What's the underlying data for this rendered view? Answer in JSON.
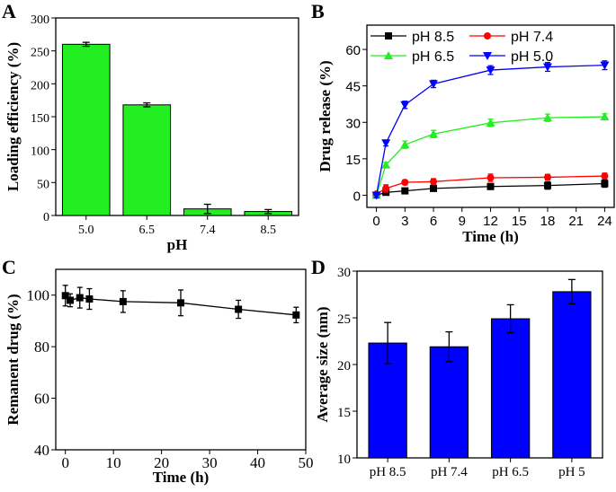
{
  "chart_data": [
    {
      "panel": "A",
      "type": "bar",
      "categories": [
        "5.0",
        "6.5",
        "7.4",
        "8.5"
      ],
      "values": [
        260,
        168,
        10,
        6
      ],
      "errors": [
        3,
        3,
        7,
        3
      ],
      "xlabel": "pH",
      "ylabel": "Loading efficiency (%)",
      "ylim": [
        0,
        300
      ],
      "yticks": [
        0,
        50,
        100,
        150,
        200,
        250,
        300
      ],
      "color": "#22ee22"
    },
    {
      "panel": "B",
      "type": "line",
      "x": [
        0,
        1,
        3,
        6,
        12,
        18,
        24
      ],
      "xlabel": "Time (h)",
      "ylabel": "Drug release (%)",
      "xlim": [
        -1,
        25
      ],
      "ylim": [
        -5,
        70
      ],
      "xticks": [
        0,
        3,
        6,
        9,
        12,
        15,
        18,
        21,
        24
      ],
      "yticks": [
        0,
        15,
        30,
        45,
        60
      ],
      "legend": "top",
      "series": [
        {
          "name": "pH 8.5",
          "color": "#000000",
          "marker": "square",
          "values": [
            0,
            1.2,
            1.8,
            2.8,
            3.6,
            4.0,
            4.8
          ],
          "errors": [
            0.8,
            0.8,
            1,
            1,
            1.2,
            1.5,
            1.5
          ]
        },
        {
          "name": "pH 7.4",
          "color": "#ff0000",
          "marker": "circle",
          "values": [
            0.5,
            2.8,
            5.3,
            5.6,
            7.2,
            7.4,
            7.9
          ],
          "errors": [
            0.8,
            1.5,
            1,
            1.2,
            1.5,
            1.2,
            1.2
          ]
        },
        {
          "name": "pH 6.5",
          "color": "#22ee22",
          "marker": "triangle-up",
          "values": [
            0,
            12.5,
            20.8,
            25.2,
            29.8,
            31.9,
            32.3
          ],
          "errors": [
            1,
            1,
            1.5,
            1.5,
            1.5,
            1.5,
            1.2
          ]
        },
        {
          "name": "pH 5.0",
          "color": "#0000ff",
          "marker": "triangle-down",
          "values": [
            0,
            21.5,
            37.2,
            45.8,
            51.5,
            52.8,
            53.5
          ],
          "errors": [
            1,
            1.2,
            1.5,
            1.5,
            1.8,
            1.8,
            1.8
          ]
        }
      ]
    },
    {
      "panel": "C",
      "type": "line",
      "x": [
        0,
        1,
        3,
        5,
        12,
        24,
        36,
        48
      ],
      "values": [
        99.8,
        98,
        99,
        98.5,
        97.5,
        97,
        94.5,
        92.3
      ],
      "errors": [
        4,
        2.5,
        4,
        4,
        4.2,
        5,
        3.5,
        3
      ],
      "xlabel": "Time (h)",
      "ylabel": "Remanent drug (%)",
      "xlim": [
        -2,
        50
      ],
      "ylim": [
        40,
        110
      ],
      "xticks": [
        0,
        10,
        20,
        30,
        40,
        50
      ],
      "yticks": [
        40,
        60,
        80,
        100
      ],
      "color": "#000000"
    },
    {
      "panel": "D",
      "type": "bar",
      "categories": [
        "pH 8.5",
        "pH 7.4",
        "pH 6.5",
        "pH 5"
      ],
      "values": [
        22.3,
        21.9,
        24.9,
        27.8
      ],
      "errors": [
        2.2,
        1.6,
        1.5,
        1.3
      ],
      "ylabel": "Average size (nm)",
      "ylim": [
        10,
        30
      ],
      "yticks": [
        10,
        15,
        20,
        25,
        30
      ],
      "color": "#0000ff"
    }
  ]
}
